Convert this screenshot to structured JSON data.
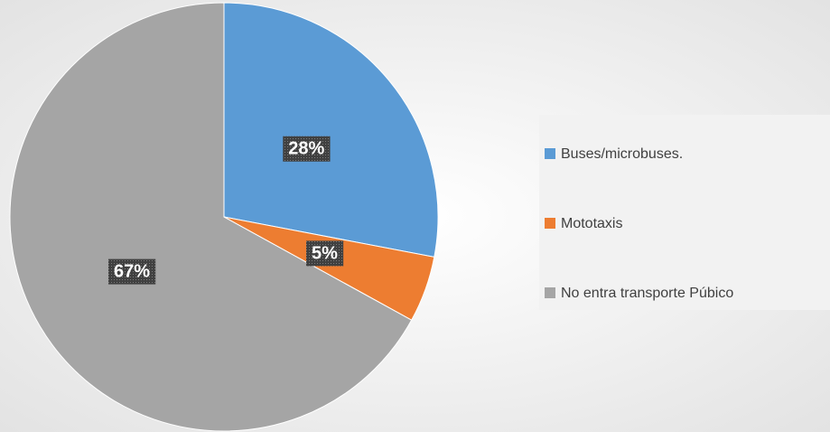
{
  "chart_data": {
    "type": "pie",
    "categories": [
      "Buses/microbuses.",
      "Mototaxis",
      "No entra transporte Púbico"
    ],
    "values": [
      28,
      5,
      67
    ],
    "value_labels": [
      "28%",
      "5%",
      "67%"
    ],
    "colors": [
      "#5b9bd5",
      "#ed7d31",
      "#a5a5a5"
    ],
    "legend": "right"
  }
}
